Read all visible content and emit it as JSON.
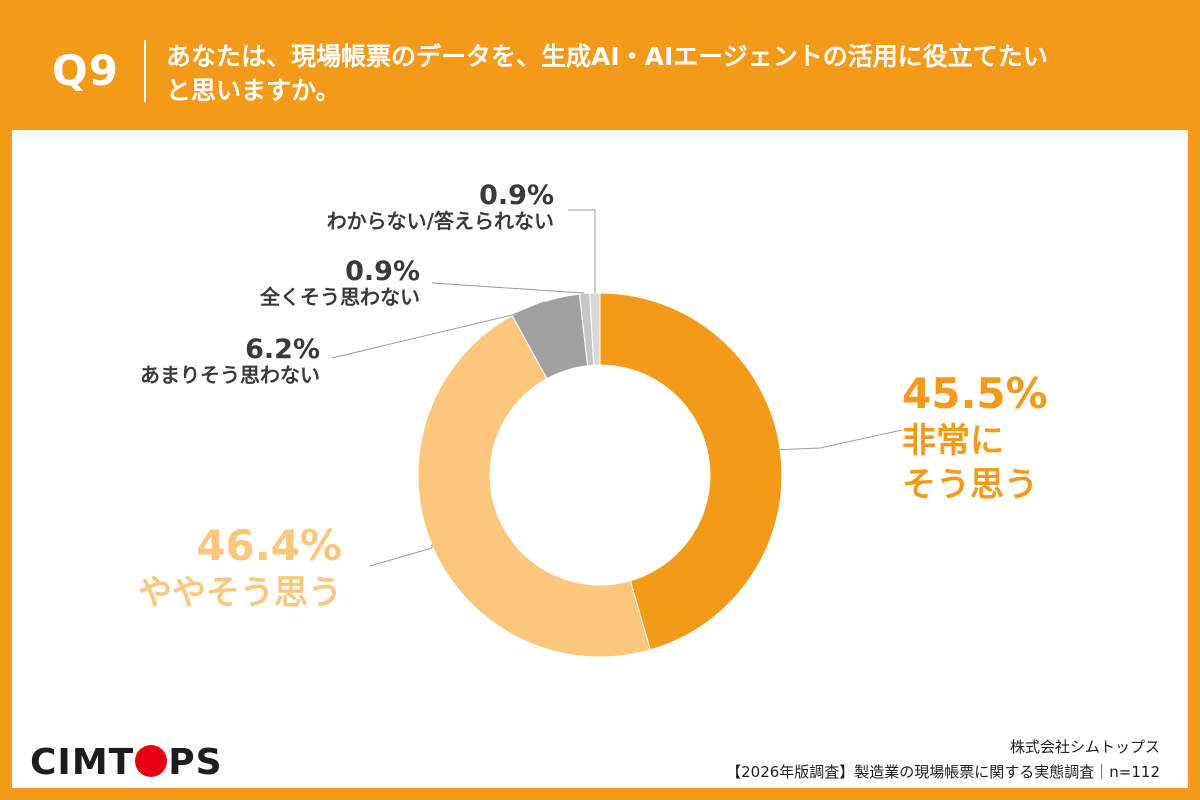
{
  "header": {
    "q_number": "Q9",
    "question_line1": "あなたは、現場帳票のデータを、生成AI・AIエージェントの活用に役立てたい",
    "question_line2": "と思いますか。"
  },
  "colors": {
    "brand_orange": "#F39A1A",
    "light_orange": "#FCC77C",
    "gray": "#A0A0A0",
    "light_gray": "#C6C6C6",
    "lighter_gray": "#D8D8D8",
    "text_dark": "#3A3A3A",
    "logo_red": "#E60012"
  },
  "chart_data": {
    "type": "pie",
    "variant": "donut",
    "title": "",
    "n": 112,
    "slices": [
      {
        "label_lines": [
          "非常に",
          "そう思う"
        ],
        "value": 45.5,
        "value_label": "45.5%",
        "color": "#F39A1A"
      },
      {
        "label_lines": [
          "ややそう思う"
        ],
        "value": 46.4,
        "value_label": "46.4%",
        "color": "#FCC77C"
      },
      {
        "label_lines": [
          "あまりそう思わない"
        ],
        "value": 6.2,
        "value_label": "6.2%",
        "color": "#A0A0A0"
      },
      {
        "label_lines": [
          "全くそう思わない"
        ],
        "value": 0.9,
        "value_label": "0.9%",
        "color": "#C6C6C6"
      },
      {
        "label_lines": [
          "わからない/答えられない"
        ],
        "value": 0.9,
        "value_label": "0.9%",
        "color": "#D8D8D8"
      }
    ]
  },
  "footer": {
    "logo_text_before": "CIMT",
    "logo_text_after": "PS",
    "company": "株式会社シムトップス",
    "survey": "【2026年版調査】製造業の現場帳票に関する実態調査｜n=112"
  }
}
